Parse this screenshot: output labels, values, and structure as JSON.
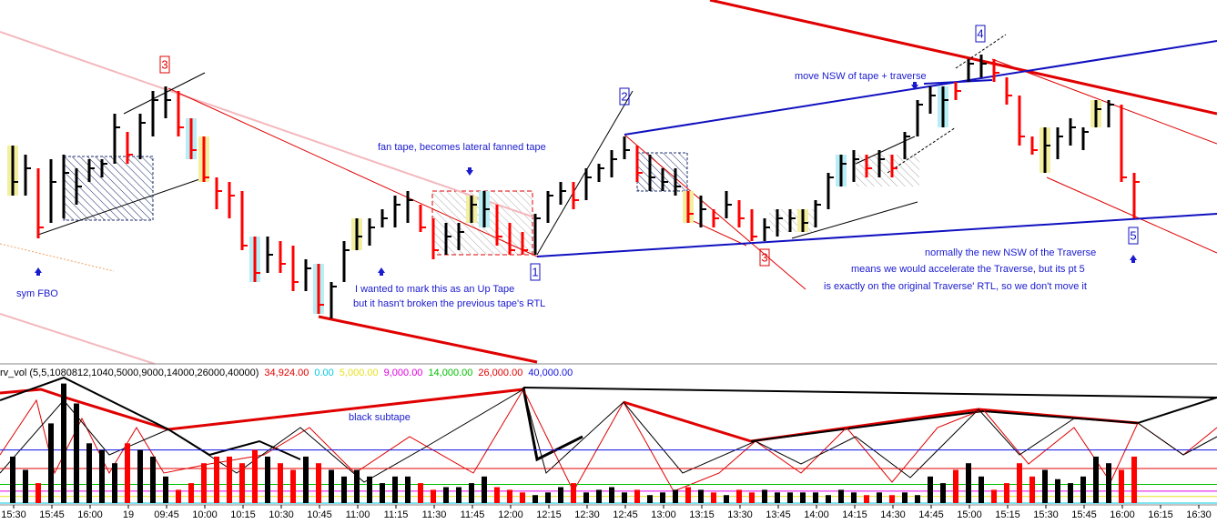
{
  "chart_data": {
    "type": "ohlc",
    "ylim": [
      0,
      400
    ],
    "high": [
      240,
      230,
      215,
      225,
      230,
      215,
      225,
      225,
      275,
      255,
      275,
      300,
      305,
      300,
      270,
      250,
      205,
      200,
      190,
      140,
      140,
      135,
      130,
      115,
      110,
      90,
      135,
      160,
      160,
      170,
      185,
      190,
      175,
      160,
      155,
      155,
      185,
      190,
      175,
      155,
      145,
      165,
      190,
      200,
      200,
      215,
      220,
      235,
      250,
      240,
      230,
      215,
      215,
      190,
      185,
      170,
      190,
      180,
      170,
      160,
      170,
      170,
      170,
      180,
      210,
      230,
      235,
      230,
      235,
      230,
      255,
      290,
      305,
      305,
      310,
      335,
      340,
      335,
      315,
      295,
      250,
      260,
      260,
      270,
      260,
      290,
      290,
      285,
      210
    ],
    "low": [
      185,
      185,
      138,
      155,
      160,
      175,
      200,
      205,
      220,
      220,
      225,
      250,
      270,
      250,
      225,
      200,
      170,
      160,
      125,
      90,
      100,
      100,
      80,
      80,
      55,
      50,
      90,
      125,
      130,
      150,
      150,
      155,
      145,
      115,
      120,
      125,
      155,
      150,
      130,
      120,
      120,
      120,
      155,
      175,
      170,
      180,
      200,
      205,
      225,
      200,
      190,
      190,
      185,
      155,
      150,
      150,
      160,
      150,
      135,
      135,
      140,
      145,
      145,
      150,
      170,
      195,
      200,
      205,
      205,
      205,
      225,
      250,
      275,
      260,
      290,
      310,
      315,
      310,
      285,
      240,
      230,
      210,
      225,
      240,
      235,
      260,
      260,
      200,
      160
    ],
    "close": [
      200,
      215,
      150,
      200,
      210,
      195,
      215,
      220,
      260,
      230,
      265,
      290,
      290,
      260,
      235,
      205,
      190,
      185,
      130,
      100,
      120,
      110,
      90,
      105,
      65,
      85,
      125,
      140,
      150,
      160,
      175,
      180,
      150,
      125,
      140,
      145,
      175,
      170,
      140,
      125,
      125,
      160,
      185,
      190,
      180,
      205,
      215,
      225,
      235,
      210,
      205,
      200,
      195,
      165,
      170,
      160,
      175,
      160,
      140,
      150,
      160,
      160,
      155,
      175,
      205,
      220,
      225,
      215,
      225,
      215,
      250,
      285,
      295,
      290,
      300,
      330,
      330,
      320,
      295,
      250,
      235,
      240,
      250,
      260,
      255,
      280,
      285,
      205,
      200
    ],
    "bar_colors": [
      "black",
      "black",
      "red",
      "black",
      "black",
      "black",
      "black",
      "black",
      "black",
      "red",
      "black",
      "black",
      "black",
      "red",
      "red",
      "red",
      "red",
      "red",
      "red",
      "red",
      "black",
      "red",
      "red",
      "black",
      "red",
      "black",
      "black",
      "black",
      "black",
      "black",
      "black",
      "black",
      "red",
      "red",
      "black",
      "black",
      "black",
      "black",
      "red",
      "red",
      "red",
      "black",
      "black",
      "black",
      "red",
      "black",
      "black",
      "black",
      "black",
      "red",
      "black",
      "black",
      "black",
      "red",
      "black",
      "red",
      "black",
      "red",
      "red",
      "black",
      "black",
      "black",
      "black",
      "black",
      "black",
      "black",
      "black",
      "red",
      "black",
      "red",
      "black",
      "black",
      "black",
      "black",
      "red",
      "black",
      "black",
      "red",
      "red",
      "red",
      "red",
      "black",
      "black",
      "black",
      "black",
      "black",
      "black",
      "red",
      "red"
    ],
    "highlights": [
      "#f3efa0",
      null,
      null,
      null,
      null,
      null,
      null,
      null,
      null,
      null,
      null,
      null,
      null,
      null,
      "#b8eef5",
      "#f3efa0",
      null,
      null,
      null,
      "#b8eef5",
      null,
      null,
      null,
      null,
      "#b8eef5",
      null,
      null,
      "#f3efa0",
      null,
      null,
      null,
      null,
      null,
      null,
      null,
      null,
      "#f3efa0",
      "#b8eef5",
      null,
      null,
      null,
      null,
      null,
      null,
      null,
      null,
      null,
      null,
      null,
      null,
      null,
      null,
      null,
      "#f3efa0",
      null,
      null,
      null,
      null,
      null,
      null,
      null,
      null,
      "#f3efa0",
      null,
      null,
      "#b8eef5",
      null,
      null,
      null,
      null,
      null,
      null,
      null,
      "#b8eef5",
      null,
      null,
      null,
      null,
      null,
      null,
      null,
      "#f3efa0",
      null,
      null,
      null,
      "#f3efa0",
      null,
      null,
      null
    ],
    "time_labels": [
      "15:30",
      "15:45",
      "16:00",
      "19",
      "09:45",
      "10:00",
      "10:15",
      "10:30",
      "10:45",
      "11:00",
      "11:15",
      "11:30",
      "11:45",
      "12:00",
      "12:15",
      "12:30",
      "12:45",
      "13:00",
      "13:15",
      "13:30",
      "13:45",
      "14:00",
      "14:15",
      "14:30",
      "14:45",
      "15:00",
      "15:15",
      "15:30",
      "15:45",
      "16:00",
      "16:15",
      "16:30"
    ],
    "volume": {
      "name": "rv_vol (5,5,1080812,1040,5000,9000,14000,26000,40000)",
      "ylim": [
        0,
        100000
      ],
      "values": [
        35000,
        25000,
        15000,
        60000,
        90000,
        75000,
        45000,
        40000,
        30000,
        45000,
        40000,
        35000,
        20000,
        10000,
        15000,
        30000,
        35000,
        35000,
        30000,
        40000,
        35000,
        30000,
        25000,
        35000,
        30000,
        25000,
        20000,
        25000,
        20000,
        15000,
        20000,
        20000,
        15000,
        10000,
        12000,
        12000,
        15000,
        20000,
        12000,
        10000,
        8000,
        6000,
        8000,
        12000,
        15000,
        8000,
        10000,
        12000,
        8000,
        10000,
        6000,
        8000,
        10000,
        12000,
        10000,
        8000,
        6000,
        10000,
        8000,
        10000,
        8000,
        8000,
        8000,
        8000,
        6000,
        10000,
        8000,
        6000,
        8000,
        6000,
        8000,
        6000,
        20000,
        15000,
        25000,
        30000,
        20000,
        10000,
        15000,
        30000,
        20000,
        25000,
        18000,
        15000,
        20000,
        35000,
        30000,
        25000,
        35000
      ],
      "current": {
        "label": "34,924.00",
        "value": 34924,
        "color": "#e00000"
      },
      "levels": [
        {
          "label": "0.00",
          "value": 0,
          "color": "#00c8e0"
        },
        {
          "label": "5,000.00",
          "value": 5000,
          "color": "#e8e020"
        },
        {
          "label": "9,000.00",
          "value": 9000,
          "color": "#e000e0"
        },
        {
          "label": "14,000.00",
          "value": 14000,
          "color": "#00c000"
        },
        {
          "label": "26,000.00",
          "value": 26000,
          "color": "#e00000"
        },
        {
          "label": "40,000.00",
          "value": 40000,
          "color": "#1010e0"
        }
      ]
    },
    "wave_labels": [
      "3",
      "2",
      "1",
      "3",
      "4",
      "5"
    ],
    "annotations": {
      "sym_fbo": "sym FBO",
      "fan_tape": "fan tape, becomes lateral fanned tape",
      "up_tape_1": "I wanted to mark this as an Up Tape",
      "up_tape_2": "but it hasn't broken the previous tape's RTL",
      "move_nsw": "move NSW of tape + traverse",
      "normally_1": "normally the new NSW of the Traverse",
      "normally_2": "means we would accelerate the Traverse, but its pt 5",
      "normally_3": "is exactly on the original Traverse' RTL, so we don't move it",
      "black_subtape": "black subtape"
    }
  }
}
